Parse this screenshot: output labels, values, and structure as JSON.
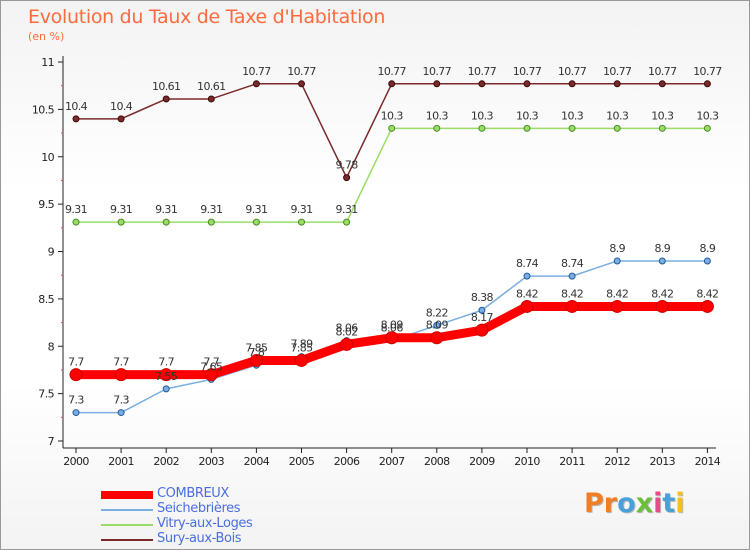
{
  "header": {
    "title": "Evolution du Taux de Taxe d'Habitation",
    "subtitle": "(en %)"
  },
  "logo": {
    "text": "Proxiti",
    "letter_colors": [
      "#f07e26",
      "#f07e26",
      "#4aa0d8",
      "#6bbf3a",
      "#e84a8a",
      "#4aa0d8",
      "#f2c21a"
    ]
  },
  "chart_data": {
    "type": "line",
    "title": "Evolution du Taux de Taxe d'Habitation",
    "ylabel": "(en %)",
    "xlabel": "",
    "x": [
      "2000",
      "2001",
      "2002",
      "2003",
      "2004",
      "2005",
      "2006",
      "2007",
      "2008",
      "2009",
      "2010",
      "2011",
      "2012",
      "2013",
      "2014"
    ],
    "ylim": [
      7,
      11
    ],
    "yticks": [
      "7",
      "7.5",
      "8",
      "8.5",
      "9",
      "9.5",
      "10",
      "10.5",
      "11"
    ],
    "grid": false,
    "legend_position": "bottom-left",
    "series": [
      {
        "name": "COMBREUX",
        "color": "#ff0000",
        "values": [
          7.7,
          7.7,
          7.7,
          7.7,
          7.85,
          7.85,
          8.02,
          8.09,
          8.09,
          8.17,
          8.42,
          8.42,
          8.42,
          8.42,
          8.42
        ],
        "labels": [
          "7.7",
          "7.7",
          "7.7",
          "7.7",
          "7.85",
          "7.85",
          "8.02",
          "8.09",
          "8.09",
          "8.17",
          "8.42",
          "8.42",
          "8.42",
          "8.42",
          "8.42"
        ]
      },
      {
        "name": "Seichebrières",
        "color": "#7aaee0",
        "values": [
          7.3,
          7.3,
          7.55,
          7.65,
          7.8,
          7.89,
          8.06,
          8.06,
          8.22,
          8.38,
          8.74,
          8.74,
          8.9,
          8.9,
          8.9
        ],
        "labels": [
          "7.3",
          "7.3",
          "7.55",
          "7.65",
          "7.8",
          "7.89",
          "8.06",
          "8.06",
          "8.22",
          "8.38",
          "8.74",
          "8.74",
          "8.9",
          "8.9",
          "8.9"
        ]
      },
      {
        "name": "Vitry-aux-Loges",
        "color": "#99dd66",
        "values": [
          9.31,
          9.31,
          9.31,
          9.31,
          9.31,
          9.31,
          9.31,
          10.3,
          10.3,
          10.3,
          10.3,
          10.3,
          10.3,
          10.3,
          10.3
        ],
        "labels": [
          "9.31",
          "9.31",
          "9.31",
          "9.31",
          "9.31",
          "9.31",
          "9.31",
          "10.3",
          "10.3",
          "10.3",
          "10.3",
          "10.3",
          "10.3",
          "10.3",
          "10.3"
        ]
      },
      {
        "name": "Sury-aux-Bois",
        "color": "#7a2a2a",
        "values": [
          10.4,
          10.4,
          10.61,
          10.61,
          10.77,
          10.77,
          9.78,
          10.77,
          10.77,
          10.77,
          10.77,
          10.77,
          10.77,
          10.77,
          10.77
        ],
        "labels": [
          "10.4",
          "10.4",
          "10.61",
          "10.61",
          "10.77",
          "10.77",
          "9.78",
          "10.77",
          "10.77",
          "10.77",
          "10.77",
          "10.77",
          "10.77",
          "10.77",
          "10.77"
        ]
      }
    ]
  }
}
